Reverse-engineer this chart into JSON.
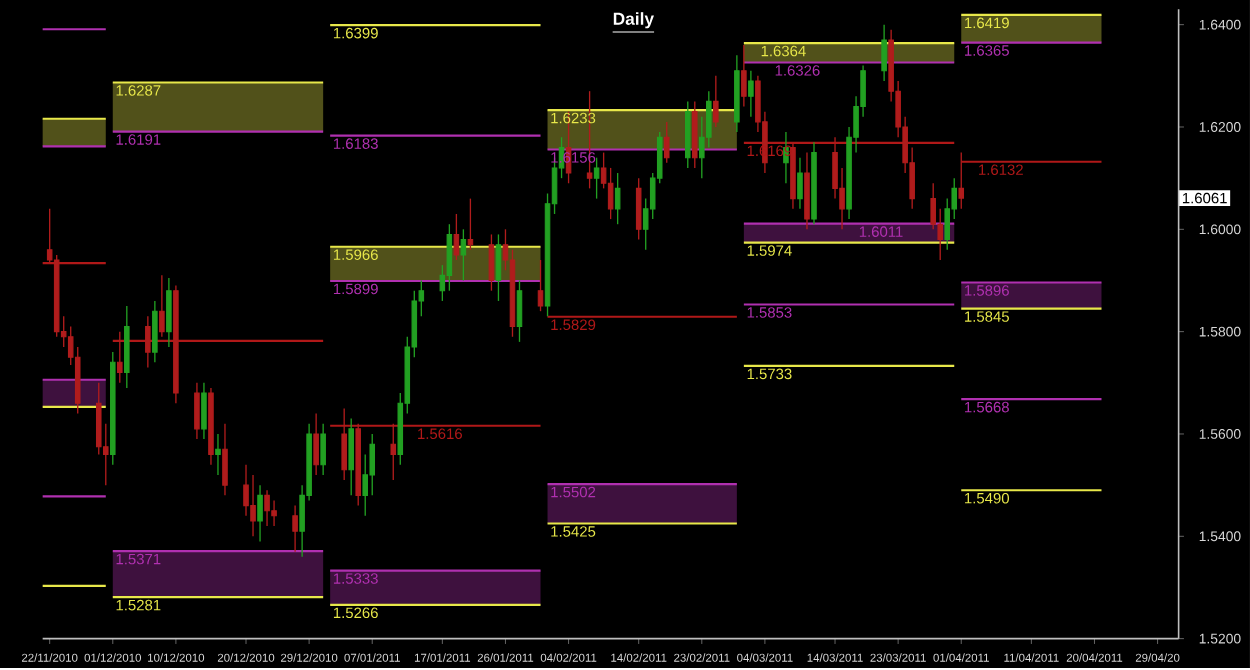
{
  "chart_data": {
    "type": "candlestick",
    "title": "Daily",
    "xlim": [
      "2010-11-21",
      "2011-05-02"
    ],
    "ylim": [
      1.52,
      1.643
    ],
    "xticks": [
      {
        "value": "2010-11-22",
        "label": "22/11/2010"
      },
      {
        "value": "2010-12-01",
        "label": "01/12/2010"
      },
      {
        "value": "2010-12-10",
        "label": "10/12/2010"
      },
      {
        "value": "2010-12-20",
        "label": "20/12/2010"
      },
      {
        "value": "2010-12-29",
        "label": "29/12/2010"
      },
      {
        "value": "2011-01-07",
        "label": "07/01/2011"
      },
      {
        "value": "2011-01-17",
        "label": "17/01/2011"
      },
      {
        "value": "2011-01-26",
        "label": "26/01/2011"
      },
      {
        "value": "2011-02-04",
        "label": "04/02/2011"
      },
      {
        "value": "2011-02-14",
        "label": "14/02/2011"
      },
      {
        "value": "2011-02-23",
        "label": "23/02/2011"
      },
      {
        "value": "2011-03-04",
        "label": "04/03/2011"
      },
      {
        "value": "2011-03-14",
        "label": "14/03/2011"
      },
      {
        "value": "2011-03-23",
        "label": "23/03/2011"
      },
      {
        "value": "2011-04-01",
        "label": "01/04/2011"
      },
      {
        "value": "2011-04-11",
        "label": "11/04/2011"
      },
      {
        "value": "2011-04-20",
        "label": "20/04/2011"
      },
      {
        "value": "2011-04-29",
        "label": "29/04/20"
      }
    ],
    "yticks": [
      {
        "value": 1.52,
        "label": "1.5200"
      },
      {
        "value": 1.54,
        "label": "1.5400"
      },
      {
        "value": 1.56,
        "label": "1.5600"
      },
      {
        "value": 1.58,
        "label": "1.5800"
      },
      {
        "value": 1.6,
        "label": "1.6000"
      },
      {
        "value": 1.62,
        "label": "1.6200"
      },
      {
        "value": 1.64,
        "label": "1.6400"
      }
    ],
    "x": [
      "2010-11-22",
      "2010-11-23",
      "2010-11-24",
      "2010-11-25",
      "2010-11-26",
      "2010-11-29",
      "2010-11-30",
      "2010-12-01",
      "2010-12-02",
      "2010-12-03",
      "2010-12-06",
      "2010-12-07",
      "2010-12-08",
      "2010-12-09",
      "2010-12-10",
      "2010-12-13",
      "2010-12-14",
      "2010-12-15",
      "2010-12-16",
      "2010-12-17",
      "2010-12-20",
      "2010-12-21",
      "2010-12-22",
      "2010-12-23",
      "2010-12-24",
      "2010-12-27",
      "2010-12-28",
      "2010-12-29",
      "2010-12-30",
      "2010-12-31",
      "2011-01-03",
      "2011-01-04",
      "2011-01-05",
      "2011-01-06",
      "2011-01-07",
      "2011-01-10",
      "2011-01-11",
      "2011-01-12",
      "2011-01-13",
      "2011-01-14",
      "2011-01-17",
      "2011-01-18",
      "2011-01-19",
      "2011-01-20",
      "2011-01-21",
      "2011-01-24",
      "2011-01-25",
      "2011-01-26",
      "2011-01-27",
      "2011-01-28",
      "2011-01-31",
      "2011-02-01",
      "2011-02-02",
      "2011-02-03",
      "2011-02-04",
      "2011-02-07",
      "2011-02-08",
      "2011-02-09",
      "2011-02-10",
      "2011-02-11",
      "2011-02-14",
      "2011-02-15",
      "2011-02-16",
      "2011-02-17",
      "2011-02-18",
      "2011-02-21",
      "2011-02-22",
      "2011-02-23",
      "2011-02-24",
      "2011-02-25",
      "2011-02-28",
      "2011-03-01",
      "2011-03-02",
      "2011-03-03",
      "2011-03-04",
      "2011-03-07",
      "2011-03-08",
      "2011-03-09",
      "2011-03-10",
      "2011-03-11",
      "2011-03-14",
      "2011-03-15",
      "2011-03-16",
      "2011-03-17",
      "2011-03-18",
      "2011-03-21",
      "2011-03-22",
      "2011-03-23",
      "2011-03-24",
      "2011-03-25",
      "2011-03-28",
      "2011-03-29",
      "2011-03-30",
      "2011-03-31",
      "2011-04-01"
    ],
    "ohlc": [
      [
        1.596,
        1.604,
        1.5935,
        1.594
      ],
      [
        1.594,
        1.595,
        1.579,
        1.58
      ],
      [
        1.58,
        1.583,
        1.577,
        1.579
      ],
      [
        1.579,
        1.581,
        1.5735,
        1.575
      ],
      [
        1.575,
        1.577,
        1.564,
        1.566
      ],
      [
        1.566,
        1.57,
        1.556,
        1.5575
      ],
      [
        1.5575,
        1.562,
        1.55,
        1.556
      ],
      [
        1.556,
        1.576,
        1.554,
        1.574
      ],
      [
        1.574,
        1.58,
        1.57,
        1.572
      ],
      [
        1.572,
        1.585,
        1.569,
        1.581
      ],
      [
        1.581,
        1.583,
        1.573,
        1.576
      ],
      [
        1.576,
        1.586,
        1.574,
        1.584
      ],
      [
        1.584,
        1.591,
        1.579,
        1.58
      ],
      [
        1.58,
        1.5905,
        1.577,
        1.588
      ],
      [
        1.588,
        1.589,
        1.566,
        1.568
      ],
      [
        1.568,
        1.57,
        1.559,
        1.561
      ],
      [
        1.561,
        1.57,
        1.559,
        1.568
      ],
      [
        1.568,
        1.569,
        1.554,
        1.556
      ],
      [
        1.556,
        1.56,
        1.552,
        1.557
      ],
      [
        1.557,
        1.562,
        1.548,
        1.55
      ],
      [
        1.55,
        1.554,
        1.544,
        1.546
      ],
      [
        1.546,
        1.552,
        1.54,
        1.543
      ],
      [
        1.543,
        1.55,
        1.539,
        1.548
      ],
      [
        1.548,
        1.549,
        1.542,
        1.545
      ],
      [
        1.545,
        1.547,
        1.542,
        1.544
      ],
      [
        1.544,
        1.546,
        1.537,
        1.541
      ],
      [
        1.541,
        1.55,
        1.536,
        1.548
      ],
      [
        1.548,
        1.562,
        1.547,
        1.56
      ],
      [
        1.56,
        1.564,
        1.552,
        1.554
      ],
      [
        1.554,
        1.562,
        1.552,
        1.56
      ],
      [
        1.56,
        1.565,
        1.551,
        1.553
      ],
      [
        1.553,
        1.563,
        1.548,
        1.561
      ],
      [
        1.561,
        1.562,
        1.546,
        1.548
      ],
      [
        1.548,
        1.556,
        1.544,
        1.552
      ],
      [
        1.552,
        1.56,
        1.548,
        1.558
      ],
      [
        1.558,
        1.562,
        1.551,
        1.556
      ],
      [
        1.556,
        1.568,
        1.554,
        1.566
      ],
      [
        1.566,
        1.579,
        1.564,
        1.577
      ],
      [
        1.577,
        1.588,
        1.575,
        1.586
      ],
      [
        1.586,
        1.59,
        1.583,
        1.588
      ],
      [
        1.588,
        1.593,
        1.586,
        1.591
      ],
      [
        1.591,
        1.601,
        1.588,
        1.599
      ],
      [
        1.599,
        1.603,
        1.594,
        1.595
      ],
      [
        1.595,
        1.6,
        1.59,
        1.598
      ],
      [
        1.598,
        1.606,
        1.596,
        1.597
      ],
      [
        1.597,
        1.599,
        1.588,
        1.59
      ],
      [
        1.59,
        1.599,
        1.586,
        1.597
      ],
      [
        1.597,
        1.6,
        1.592,
        1.594
      ],
      [
        1.594,
        1.596,
        1.579,
        1.581
      ],
      [
        1.581,
        1.59,
        1.578,
        1.588
      ],
      [
        1.588,
        1.594,
        1.584,
        1.585
      ],
      [
        1.585,
        1.607,
        1.583,
        1.605
      ],
      [
        1.605,
        1.614,
        1.603,
        1.612
      ],
      [
        1.612,
        1.618,
        1.61,
        1.616
      ],
      [
        1.616,
        1.623,
        1.609,
        1.611
      ],
      [
        1.611,
        1.627,
        1.608,
        1.61
      ],
      [
        1.61,
        1.614,
        1.606,
        1.612
      ],
      [
        1.612,
        1.615,
        1.608,
        1.609
      ],
      [
        1.609,
        1.612,
        1.602,
        1.604
      ],
      [
        1.604,
        1.611,
        1.601,
        1.608
      ],
      [
        1.608,
        1.61,
        1.598,
        1.6
      ],
      [
        1.6,
        1.606,
        1.596,
        1.604
      ],
      [
        1.604,
        1.611,
        1.602,
        1.61
      ],
      [
        1.61,
        1.619,
        1.609,
        1.618
      ],
      [
        1.618,
        1.621,
        1.613,
        1.614
      ],
      [
        1.614,
        1.625,
        1.612,
        1.623
      ],
      [
        1.623,
        1.625,
        1.612,
        1.614
      ],
      [
        1.614,
        1.622,
        1.61,
        1.618
      ],
      [
        1.618,
        1.627,
        1.616,
        1.625
      ],
      [
        1.625,
        1.63,
        1.62,
        1.621
      ],
      [
        1.621,
        1.634,
        1.619,
        1.631
      ],
      [
        1.631,
        1.636,
        1.624,
        1.626
      ],
      [
        1.626,
        1.631,
        1.622,
        1.629
      ],
      [
        1.629,
        1.63,
        1.619,
        1.621
      ],
      [
        1.621,
        1.623,
        1.611,
        1.613
      ],
      [
        1.613,
        1.619,
        1.609,
        1.616
      ],
      [
        1.616,
        1.617,
        1.604,
        1.606
      ],
      [
        1.606,
        1.614,
        1.604,
        1.611
      ],
      [
        1.611,
        1.615,
        1.6,
        1.602
      ],
      [
        1.602,
        1.617,
        1.601,
        1.615
      ],
      [
        1.615,
        1.618,
        1.606,
        1.608
      ],
      [
        1.608,
        1.612,
        1.6,
        1.604
      ],
      [
        1.604,
        1.62,
        1.602,
        1.618
      ],
      [
        1.618,
        1.626,
        1.615,
        1.624
      ],
      [
        1.624,
        1.632,
        1.622,
        1.631
      ],
      [
        1.631,
        1.64,
        1.629,
        1.637
      ],
      [
        1.637,
        1.639,
        1.625,
        1.627
      ],
      [
        1.627,
        1.629,
        1.618,
        1.62
      ],
      [
        1.62,
        1.622,
        1.611,
        1.613
      ],
      [
        1.613,
        1.616,
        1.604,
        1.606
      ],
      [
        1.606,
        1.609,
        1.6,
        1.601
      ],
      [
        1.601,
        1.604,
        1.594,
        1.598
      ],
      [
        1.598,
        1.606,
        1.596,
        1.604
      ],
      [
        1.604,
        1.61,
        1.602,
        1.608
      ],
      [
        1.608,
        1.615,
        1.604,
        1.6061
      ]
    ],
    "series": [
      {
        "type": "line",
        "color": "#b030b0",
        "x": [
          "2010-11-21",
          "2010-11-30"
        ],
        "values": [
          1.6391,
          1.6391
        ]
      },
      {
        "type": "line",
        "color": "#e8e84a",
        "x": [
          "2010-11-21",
          "2010-11-30"
        ],
        "values": [
          1.6216,
          1.6216
        ],
        "lower": [
          1.6162,
          1.6162
        ],
        "upper": [
          1.6216,
          1.6216
        ]
      },
      {
        "type": "line",
        "color": "#b030b0",
        "x": [
          "2010-11-21",
          "2010-11-30"
        ],
        "values": [
          1.6162,
          1.6162
        ]
      },
      {
        "type": "line",
        "color": "#b01818",
        "x": [
          "2010-11-21",
          "2010-11-30"
        ],
        "values": [
          1.5934,
          1.5934
        ]
      },
      {
        "type": "line",
        "color": "#b030b0",
        "x": [
          "2010-11-21",
          "2010-11-30"
        ],
        "values": [
          1.5706,
          1.5706
        ],
        "lower": [
          1.5653,
          1.5653
        ],
        "upper": [
          1.5706,
          1.5706
        ]
      },
      {
        "type": "line",
        "color": "#e8e84a",
        "x": [
          "2010-11-21",
          "2010-11-30"
        ],
        "values": [
          1.5653,
          1.5653
        ]
      },
      {
        "type": "line",
        "color": "#b030b0",
        "x": [
          "2010-11-21",
          "2010-11-30"
        ],
        "values": [
          1.5478,
          1.5478
        ]
      },
      {
        "type": "line",
        "color": "#e8e84a",
        "x": [
          "2010-11-21",
          "2010-11-30"
        ],
        "values": [
          1.5303,
          1.5303
        ]
      },
      {
        "type": "line",
        "name": "1.6287",
        "color": "#e8e84a",
        "x": [
          "2010-12-01",
          "2010-12-31"
        ],
        "values": [
          1.6287,
          1.6287
        ],
        "lower": [
          1.6191,
          1.6191
        ],
        "upper": [
          1.6287,
          1.6287
        ]
      },
      {
        "type": "line",
        "name": "1.6191",
        "color": "#b030b0",
        "x": [
          "2010-12-01",
          "2010-12-31"
        ],
        "values": [
          1.6191,
          1.6191
        ]
      },
      {
        "type": "line",
        "color": "#b01818",
        "x": [
          "2010-12-01",
          "2010-12-31"
        ],
        "values": [
          1.5782,
          1.5782
        ]
      },
      {
        "type": "line",
        "name": "1.5371",
        "color": "#b030b0",
        "x": [
          "2010-12-01",
          "2010-12-31"
        ],
        "values": [
          1.5371,
          1.5371
        ],
        "lower": [
          1.5281,
          1.5281
        ],
        "upper": [
          1.5371,
          1.5371
        ]
      },
      {
        "type": "line",
        "name": "1.5281",
        "color": "#e8e84a",
        "x": [
          "2010-12-01",
          "2010-12-31"
        ],
        "values": [
          1.5281,
          1.5281
        ]
      },
      {
        "type": "line",
        "name": "1.6399",
        "color": "#e8e84a",
        "x": [
          "2011-01-01",
          "2011-01-31"
        ],
        "values": [
          1.6399,
          1.6399
        ]
      },
      {
        "type": "line",
        "name": "1.6183",
        "color": "#b030b0",
        "x": [
          "2011-01-01",
          "2011-01-31"
        ],
        "values": [
          1.6183,
          1.6183
        ]
      },
      {
        "type": "line",
        "name": "1.5966",
        "color": "#e8e84a",
        "x": [
          "2011-01-01",
          "2011-01-31"
        ],
        "values": [
          1.5966,
          1.5966
        ],
        "lower": [
          1.5899,
          1.5899
        ],
        "upper": [
          1.5966,
          1.5966
        ]
      },
      {
        "type": "line",
        "name": "1.5899",
        "color": "#b030b0",
        "x": [
          "2011-01-01",
          "2011-01-31"
        ],
        "values": [
          1.5899,
          1.5899
        ]
      },
      {
        "type": "line",
        "name": "1.5616",
        "color": "#b01818",
        "x": [
          "2011-01-01",
          "2011-01-31"
        ],
        "values": [
          1.5616,
          1.5616
        ]
      },
      {
        "type": "line",
        "name": "1.5333",
        "color": "#b030b0",
        "x": [
          "2011-01-01",
          "2011-01-31"
        ],
        "values": [
          1.5333,
          1.5333
        ],
        "lower": [
          1.5266,
          1.5266
        ],
        "upper": [
          1.5333,
          1.5333
        ]
      },
      {
        "type": "line",
        "name": "1.5266",
        "color": "#e8e84a",
        "x": [
          "2011-01-01",
          "2011-01-31"
        ],
        "values": [
          1.5266,
          1.5266
        ]
      },
      {
        "type": "line",
        "name": "1.6233",
        "color": "#e8e84a",
        "x": [
          "2011-02-01",
          "2011-02-28"
        ],
        "values": [
          1.6233,
          1.6233
        ],
        "lower": [
          1.6156,
          1.6156
        ],
        "upper": [
          1.6233,
          1.6233
        ]
      },
      {
        "type": "line",
        "name": "1.6156",
        "color": "#b030b0",
        "x": [
          "2011-02-01",
          "2011-02-28"
        ],
        "values": [
          1.6156,
          1.6156
        ]
      },
      {
        "type": "line",
        "name": "1.5829",
        "color": "#b01818",
        "x": [
          "2011-02-01",
          "2011-02-28"
        ],
        "values": [
          1.5829,
          1.5829
        ]
      },
      {
        "type": "line",
        "name": "1.5502",
        "color": "#b030b0",
        "x": [
          "2011-02-01",
          "2011-02-28"
        ],
        "values": [
          1.5502,
          1.5502
        ],
        "lower": [
          1.5425,
          1.5425
        ],
        "upper": [
          1.5502,
          1.5502
        ]
      },
      {
        "type": "line",
        "name": "1.5425",
        "color": "#e8e84a",
        "x": [
          "2011-02-01",
          "2011-02-28"
        ],
        "values": [
          1.5425,
          1.5425
        ]
      },
      {
        "type": "line",
        "name": "1.6364",
        "color": "#e8e84a",
        "x": [
          "2011-03-01",
          "2011-03-31"
        ],
        "values": [
          1.6364,
          1.6364
        ],
        "lower": [
          1.6326,
          1.6326
        ],
        "upper": [
          1.6364,
          1.6364
        ]
      },
      {
        "type": "line",
        "name": "1.6326",
        "color": "#b030b0",
        "x": [
          "2011-03-01",
          "2011-03-31"
        ],
        "values": [
          1.6326,
          1.6326
        ]
      },
      {
        "type": "line",
        "name": "1.6169",
        "color": "#b01818",
        "x": [
          "2011-03-01",
          "2011-03-31"
        ],
        "values": [
          1.6169,
          1.6169
        ]
      },
      {
        "type": "line",
        "name": "1.6011",
        "color": "#b030b0",
        "x": [
          "2011-03-01",
          "2011-03-31"
        ],
        "values": [
          1.6011,
          1.6011
        ],
        "lower": [
          1.5974,
          1.5974
        ],
        "upper": [
          1.6011,
          1.6011
        ]
      },
      {
        "type": "line",
        "name": "1.5974",
        "color": "#e8e84a",
        "x": [
          "2011-03-01",
          "2011-03-31"
        ],
        "values": [
          1.5974,
          1.5974
        ]
      },
      {
        "type": "line",
        "name": "1.5853",
        "color": "#b030b0",
        "x": [
          "2011-03-01",
          "2011-03-31"
        ],
        "values": [
          1.5853,
          1.5853
        ]
      },
      {
        "type": "line",
        "name": "1.5733",
        "color": "#e8e84a",
        "x": [
          "2011-03-01",
          "2011-03-31"
        ],
        "values": [
          1.5733,
          1.5733
        ]
      },
      {
        "type": "line",
        "name": "1.6419",
        "color": "#e8e84a",
        "x": [
          "2011-04-01",
          "2011-04-21"
        ],
        "values": [
          1.6419,
          1.6419
        ],
        "lower": [
          1.6365,
          1.6365
        ],
        "upper": [
          1.6419,
          1.6419
        ]
      },
      {
        "type": "line",
        "name": "1.6365",
        "color": "#b030b0",
        "x": [
          "2011-04-01",
          "2011-04-21"
        ],
        "values": [
          1.6365,
          1.6365
        ]
      },
      {
        "type": "line",
        "name": "1.6132",
        "color": "#b01818",
        "x": [
          "2011-04-01",
          "2011-04-21"
        ],
        "values": [
          1.6132,
          1.6132
        ]
      },
      {
        "type": "line",
        "name": "1.5896",
        "color": "#b030b0",
        "x": [
          "2011-04-01",
          "2011-04-21"
        ],
        "values": [
          1.5896,
          1.5896
        ],
        "lower": [
          1.5845,
          1.5845
        ],
        "upper": [
          1.5896,
          1.5896
        ]
      },
      {
        "type": "line",
        "name": "1.5845",
        "color": "#e8e84a",
        "x": [
          "2011-04-01",
          "2011-04-21"
        ],
        "values": [
          1.5845,
          1.5845
        ]
      },
      {
        "type": "line",
        "name": "1.5668",
        "color": "#b030b0",
        "x": [
          "2011-04-01",
          "2011-04-21"
        ],
        "values": [
          1.5668,
          1.5668
        ]
      },
      {
        "type": "line",
        "name": "1.5490",
        "color": "#e8e84a",
        "x": [
          "2011-04-01",
          "2011-04-21"
        ],
        "values": [
          1.549,
          1.549
        ]
      }
    ],
    "annotations": [
      {
        "text": "1.6061",
        "y": 1.6061
      }
    ]
  }
}
